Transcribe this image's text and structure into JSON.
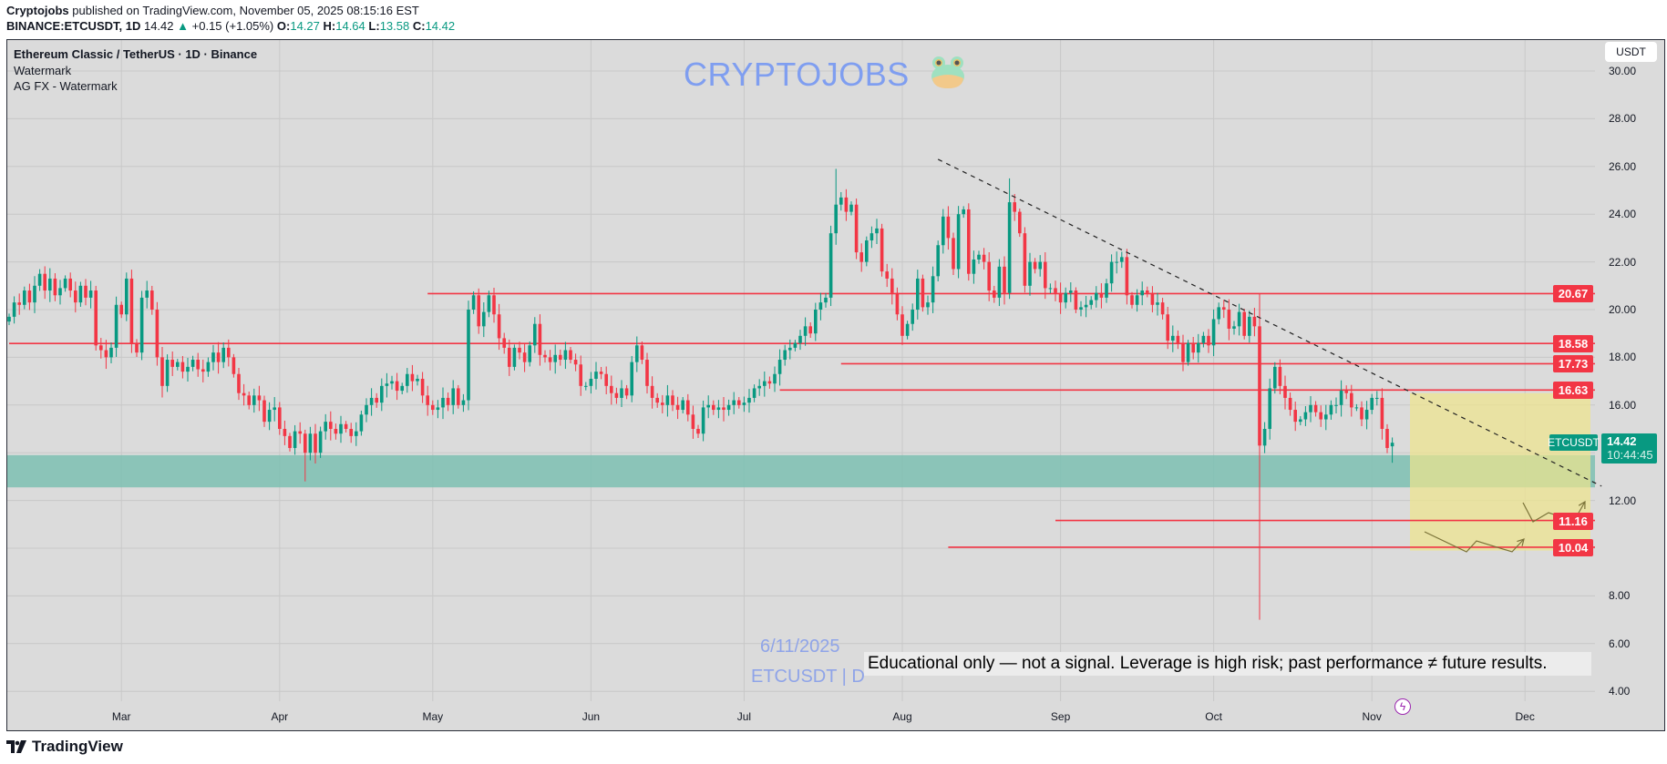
{
  "header": {
    "author": "Cryptojobs",
    "published": "published on TradingView.com, November 05, 2025 08:15:16 EST",
    "symbol_line": "BINANCE:ETCUSDT, 1D",
    "last": "14.42",
    "change": "+0.15 (+1.05%)",
    "o_label": "O:",
    "o": "14.27",
    "h_label": "H:",
    "h": "14.64",
    "l_label": "L:",
    "l": "13.58",
    "c_label": "C:",
    "c": "14.42"
  },
  "legend": {
    "title": "Ethereum Classic / TetherUS · 1D · Binance",
    "indicator1": "Watermark",
    "indicator2": "AG FX - Watermark"
  },
  "currency_button": "USDT",
  "watermark": {
    "text": "CRYPTOJOBS",
    "icon": "frog-face-icon",
    "date": "6/11/2025",
    "symbol": "ETCUSDT | D"
  },
  "disclaimer": "Educational only — not a signal. Leverage is high risk; past performance ≠ future results.",
  "last_price_tag": {
    "symbol": "ETCUSDT",
    "price": "14.42",
    "countdown": "10:44:45"
  },
  "footer": {
    "brand": "TradingView"
  },
  "colors": {
    "up": "#089981",
    "down": "#f23645",
    "level": "#f23645",
    "zone": "#7dbfb2",
    "target_box": "#f0e68c",
    "watermark": "#7f9ef0"
  },
  "chart_data": {
    "type": "candlestick",
    "interval": "1D",
    "start_date": "2025-02-07",
    "y_ticks": [
      "30.00",
      "28.00",
      "26.00",
      "24.00",
      "22.00",
      "20.00",
      "18.00",
      "16.00",
      "12.00",
      "8.00",
      "6.00",
      "4.00"
    ],
    "ylim": [
      3,
      31
    ],
    "x_ticks": [
      "Mar",
      "Apr",
      "May",
      "Jun",
      "Jul",
      "Aug",
      "Sep",
      "Oct",
      "Nov",
      "Dec"
    ],
    "closes": [
      19.7,
      20.3,
      20.2,
      20.8,
      20.3,
      21.0,
      21.5,
      20.8,
      21.3,
      20.6,
      20.9,
      21.3,
      20.8,
      20.3,
      21.0,
      20.5,
      20.8,
      18.5,
      18.3,
      18.0,
      18.4,
      20.2,
      19.8,
      21.3,
      18.6,
      18.2,
      20.5,
      20.8,
      20.0,
      18.0,
      16.8,
      17.9,
      17.6,
      17.8,
      17.4,
      17.6,
      17.9,
      17.5,
      17.4,
      17.8,
      18.2,
      17.8,
      18.4,
      18.0,
      17.3,
      16.5,
      16.4,
      16.0,
      16.4,
      16.2,
      15.3,
      15.8,
      15.9,
      15.0,
      14.7,
      14.2,
      14.9,
      14.8,
      14.0,
      14.8,
      14.0,
      14.9,
      15.3,
      15.0,
      14.8,
      15.2,
      15.0,
      14.7,
      14.9,
      15.6,
      16.0,
      16.3,
      16.1,
      16.8,
      16.9,
      17.0,
      16.6,
      16.8,
      17.3,
      17.0,
      17.1,
      16.4,
      16.0,
      15.8,
      15.9,
      16.3,
      16.0,
      16.7,
      16.0,
      16.2,
      20.0,
      20.6,
      19.3,
      19.9,
      20.6,
      19.8,
      18.8,
      18.4,
      17.6,
      18.4,
      18.2,
      17.8,
      18.5,
      19.4,
      18.1,
      18.0,
      17.8,
      18.1,
      17.9,
      18.3,
      17.9,
      17.7,
      16.8,
      16.8,
      17.1,
      17.4,
      17.3,
      16.8,
      16.5,
      16.3,
      16.7,
      16.4,
      17.8,
      18.5,
      17.9,
      16.8,
      16.3,
      16.1,
      16.0,
      16.4,
      16.0,
      15.8,
      16.2,
      15.6,
      15.0,
      14.8,
      15.9,
      16.0,
      15.8,
      15.9,
      15.8,
      16.0,
      16.2,
      16.0,
      16.1,
      16.3,
      16.7,
      16.8,
      17.0,
      16.9,
      17.3,
      17.9,
      18.3,
      18.4,
      18.6,
      18.9,
      19.3,
      19.0,
      20.0,
      20.3,
      20.5,
      23.2,
      24.4,
      24.7,
      24.1,
      24.4,
      22.4,
      22.0,
      22.9,
      23.2,
      23.4,
      21.6,
      21.3,
      20.7,
      19.8,
      18.9,
      19.4,
      20.0,
      21.3,
      20.1,
      20.3,
      21.4,
      22.7,
      23.9,
      23.0,
      21.7,
      24.0,
      24.2,
      21.5,
      22.1,
      22.3,
      22.0,
      20.8,
      20.5,
      21.8,
      20.7,
      24.5,
      24.1,
      23.2,
      21.0,
      22.0,
      21.7,
      22.0,
      20.9,
      20.9,
      20.7,
      20.3,
      20.7,
      20.8,
      20.0,
      20.1,
      20.2,
      20.4,
      20.7,
      20.5,
      21.1,
      22.0,
      22.0,
      22.2,
      20.6,
      20.2,
      20.6,
      20.8,
      20.7,
      20.2,
      20.3,
      19.8,
      18.7,
      18.9,
      18.6,
      17.8,
      18.6,
      18.2,
      18.6,
      18.9,
      18.5,
      19.6,
      20.1,
      20.0,
      19.2,
      19.3,
      19.9,
      18.9,
      19.7,
      19.3,
      14.3,
      15.0,
      16.7,
      17.6,
      16.8,
      16.3,
      15.8,
      15.3,
      15.4,
      15.7,
      16.0,
      15.7,
      15.4,
      15.6,
      16.0,
      16.0,
      16.6,
      16.5,
      15.9,
      15.9,
      15.4,
      15.8,
      16.3,
      16.3,
      15.0,
      14.2,
      14.42
    ],
    "first_open": 19.5,
    "last_candle": {
      "open": 14.27,
      "high": 14.64,
      "low": 13.58,
      "close": 14.42
    },
    "extremes": [
      {
        "i": 58,
        "low": 12.8
      },
      {
        "i": 162,
        "high": 25.9
      },
      {
        "i": 196,
        "high": 25.5
      },
      {
        "i": 245,
        "high": 20.67,
        "low": 7.0
      }
    ],
    "levels": [
      {
        "price": 20.67,
        "label": "20.67",
        "from": "2025-04-30"
      },
      {
        "price": 18.58,
        "label": "18.58",
        "from": "2025-02-07"
      },
      {
        "price": 17.73,
        "label": "17.73",
        "from": "2025-07-20"
      },
      {
        "price": 16.63,
        "label": "16.63",
        "from": "2025-07-08"
      },
      {
        "price": 11.16,
        "label": "11.16",
        "from": "2025-08-31"
      },
      {
        "price": 10.04,
        "label": "10.04",
        "from": "2025-08-10"
      }
    ],
    "support_zone": [
      12.55,
      13.9
    ],
    "trendline": {
      "from": {
        "date": "2025-08-08",
        "price": 26.3
      },
      "to": {
        "date": "2025-12-16",
        "price": 12.6
      }
    },
    "target_box": {
      "price_top": 16.5,
      "price_bottom": 9.9
    }
  }
}
